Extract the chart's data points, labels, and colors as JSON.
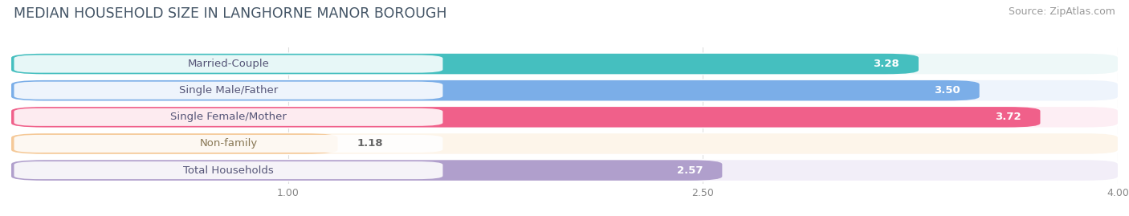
{
  "title": "MEDIAN HOUSEHOLD SIZE IN LANGHORNE MANOR BOROUGH",
  "source": "Source: ZipAtlas.com",
  "categories": [
    "Married-Couple",
    "Single Male/Father",
    "Single Female/Mother",
    "Non-family",
    "Total Households"
  ],
  "values": [
    3.28,
    3.5,
    3.72,
    1.18,
    2.57
  ],
  "bar_colors": [
    "#45bfbf",
    "#7baee8",
    "#f0608a",
    "#f5c998",
    "#b09fcc"
  ],
  "bar_bg_colors": [
    "#eef8f8",
    "#eef4fc",
    "#fdeef4",
    "#fdf5ea",
    "#f2eef8"
  ],
  "label_text_colors": [
    "#555577",
    "#555577",
    "#555577",
    "#887755",
    "#555577"
  ],
  "xlim": [
    0,
    4.0
  ],
  "xticks": [
    1.0,
    2.5,
    4.0
  ],
  "title_fontsize": 12.5,
  "label_fontsize": 9.5,
  "value_fontsize": 9.5,
  "source_fontsize": 9,
  "background_color": "#ffffff"
}
